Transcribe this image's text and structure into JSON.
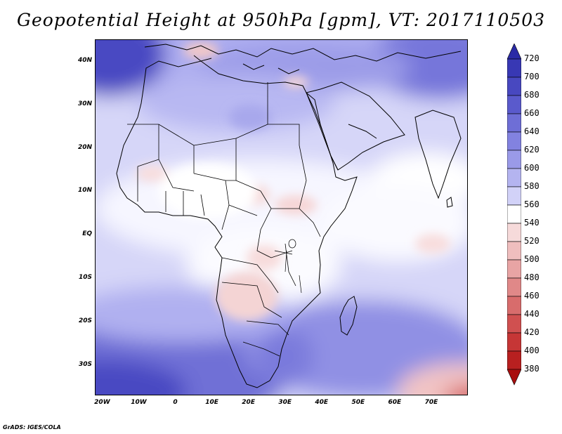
{
  "title": "Geopotential Height at 950hPa [gpm], VT: 2017110503",
  "credit": "GrADS: IGES/COLA",
  "map": {
    "region": "Africa",
    "projection": "latlon",
    "lon_range": [
      -22,
      80
    ],
    "lat_range": [
      -37,
      45
    ],
    "lat_labels": [
      {
        "lat": 40,
        "text": "40N"
      },
      {
        "lat": 30,
        "text": "30N"
      },
      {
        "lat": 20,
        "text": "20N"
      },
      {
        "lat": 10,
        "text": "10N"
      },
      {
        "lat": 0,
        "text": "EQ"
      },
      {
        "lat": -10,
        "text": "10S"
      },
      {
        "lat": -20,
        "text": "20S"
      },
      {
        "lat": -30,
        "text": "30S"
      }
    ],
    "lon_labels": [
      {
        "lon": -20,
        "text": "20W"
      },
      {
        "lon": -10,
        "text": "10W"
      },
      {
        "lon": 0,
        "text": "0"
      },
      {
        "lon": 10,
        "text": "10E"
      },
      {
        "lon": 20,
        "text": "20E"
      },
      {
        "lon": 30,
        "text": "30E"
      },
      {
        "lon": 40,
        "text": "40E"
      },
      {
        "lon": 50,
        "text": "50E"
      },
      {
        "lon": 60,
        "text": "60E"
      },
      {
        "lon": 70,
        "text": "70E"
      }
    ],
    "field": "Geopotential Height",
    "level": "950hPa",
    "units": "gpm",
    "valid_time": "2017110503"
  },
  "colorbar": {
    "levels": [
      "720",
      "700",
      "680",
      "660",
      "640",
      "620",
      "600",
      "580",
      "560",
      "540",
      "520",
      "500",
      "480",
      "460",
      "440",
      "420",
      "400",
      "380"
    ],
    "colors": [
      "#2a2aa6",
      "#3838b4",
      "#4848c0",
      "#5a5acc",
      "#6e6ed6",
      "#8282e0",
      "#9a9ae8",
      "#b4b4f0",
      "#d2d2f8",
      "#ffffff",
      "#f6dada",
      "#efbebe",
      "#e8a4a4",
      "#e08888",
      "#d86c6c",
      "#d05050",
      "#c63636",
      "#b82020",
      "#a80e0e"
    ]
  }
}
